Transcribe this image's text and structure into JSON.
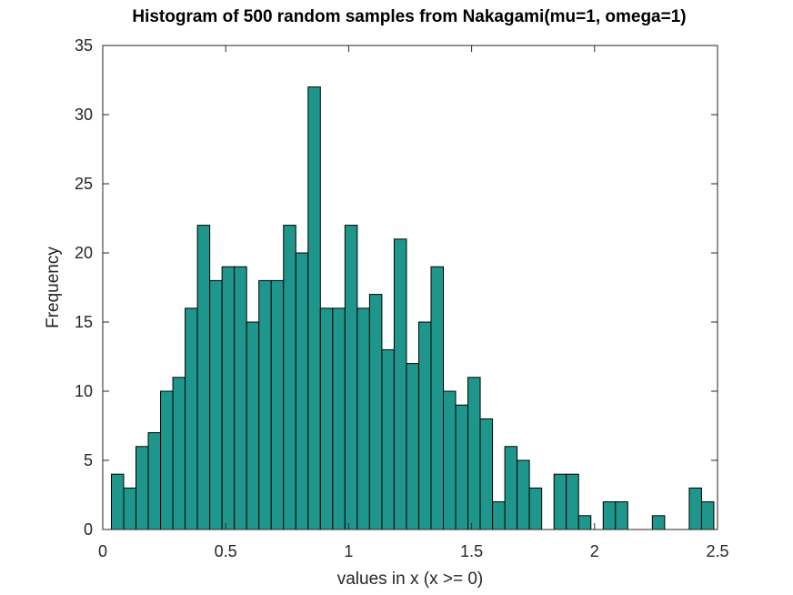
{
  "chart_data": {
    "type": "bar",
    "title": "Histogram of 500 random samples from Nakagami(mu=1, omega=1)",
    "xlabel": "values in x (x >= 0)",
    "ylabel": "Frequency",
    "xlim": [
      0,
      2.5
    ],
    "ylim": [
      0,
      35
    ],
    "xticks": [
      0,
      0.5,
      1,
      1.5,
      2,
      2.5
    ],
    "xtick_labels": [
      "0",
      "0.5",
      "1",
      "1.5",
      "2",
      "2.5"
    ],
    "yticks": [
      0,
      5,
      10,
      15,
      20,
      25,
      30,
      35
    ],
    "ytick_labels": [
      "0",
      "5",
      "10",
      "15",
      "20",
      "25",
      "30",
      "35"
    ],
    "grid": false,
    "bar_color": "#1f968b",
    "bin_start": 0.035,
    "bin_width": 0.05,
    "values": [
      4,
      3,
      6,
      7,
      10,
      11,
      16,
      22,
      18,
      19,
      19,
      15,
      18,
      18,
      22,
      20,
      32,
      16,
      16,
      22,
      16,
      17,
      13,
      21,
      12,
      15,
      19,
      10,
      9,
      11,
      8,
      2,
      6,
      5,
      3,
      0,
      4,
      4,
      1,
      0,
      2,
      2,
      0,
      0,
      1,
      0,
      0,
      3,
      2
    ]
  }
}
